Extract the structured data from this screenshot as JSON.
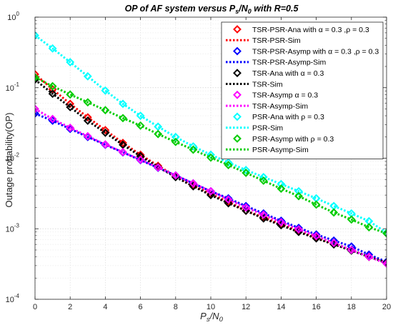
{
  "chart_data": {
    "type": "line",
    "title_parts": [
      "OP of AF system versus P",
      "s",
      "/N",
      "0",
      " with R=0.5"
    ],
    "xlabel_parts": [
      "P",
      "s",
      "/N",
      "0"
    ],
    "ylabel": "Outage probability(OP)",
    "xlim": [
      0,
      20
    ],
    "ylim": [
      0.0001,
      1
    ],
    "yscale": "log",
    "xticks": [
      "0",
      "2",
      "4",
      "6",
      "8",
      "10",
      "12",
      "14",
      "16",
      "18",
      "20"
    ],
    "yticks": [
      {
        "base": "10",
        "exp": "0"
      },
      {
        "base": "10",
        "exp": "-1"
      },
      {
        "base": "10",
        "exp": "-2"
      },
      {
        "base": "10",
        "exp": "-3"
      },
      {
        "base": "10",
        "exp": "-4"
      }
    ],
    "grid": true,
    "legend_position": "top-right",
    "x": [
      0,
      1,
      2,
      3,
      4,
      5,
      6,
      7,
      8,
      9,
      10,
      11,
      12,
      13,
      14,
      15,
      16,
      17,
      18,
      19,
      20
    ],
    "series": [
      {
        "name": "TSR-PSR-Ana with α = 0.3 ,ρ = 0.3",
        "color": "#ff0000",
        "style": "marker",
        "values": [
          0.155,
          0.095,
          0.059,
          0.038,
          0.025,
          0.0165,
          0.0112,
          0.0078,
          0.0056,
          0.0041,
          0.0031,
          0.0024,
          0.0018,
          0.00145,
          0.00115,
          0.00093,
          0.00075,
          0.00061,
          0.0005,
          0.0004,
          0.00033
        ]
      },
      {
        "name": "TSR-PSR-Sim",
        "color": "#ff0000",
        "style": "dotted",
        "values": [
          0.155,
          0.095,
          0.059,
          0.038,
          0.025,
          0.0165,
          0.0112,
          0.0078,
          0.0056,
          0.0041,
          0.0031,
          0.0024,
          0.0018,
          0.00145,
          0.00115,
          0.00093,
          0.00075,
          0.00061,
          0.0005,
          0.0004,
          0.00033
        ]
      },
      {
        "name": "TSR-PSR-Asymp with α = 0.3 ,ρ = 0.3",
        "color": "#0000ff",
        "style": "marker",
        "values": [
          0.043,
          0.034,
          0.026,
          0.02,
          0.0155,
          0.0121,
          0.0094,
          0.0073,
          0.0057,
          0.0044,
          0.0034,
          0.0027,
          0.0021,
          0.00165,
          0.0013,
          0.00103,
          0.00083,
          0.00068,
          0.00056,
          0.00043,
          0.00034
        ]
      },
      {
        "name": "TSR-PSR-Asymp-Sim",
        "color": "#0000ff",
        "style": "dotted",
        "values": [
          0.043,
          0.034,
          0.026,
          0.02,
          0.0155,
          0.0121,
          0.0094,
          0.0073,
          0.0057,
          0.0044,
          0.0034,
          0.0027,
          0.0021,
          0.00165,
          0.0013,
          0.00103,
          0.00083,
          0.00068,
          0.00056,
          0.00043,
          0.00034
        ]
      },
      {
        "name": "TSR-Ana with α = 0.3",
        "color": "#000000",
        "style": "marker",
        "values": [
          0.13,
          0.082,
          0.053,
          0.034,
          0.023,
          0.0155,
          0.0107,
          0.0075,
          0.0054,
          0.004,
          0.003,
          0.0023,
          0.0018,
          0.0014,
          0.00112,
          0.0009,
          0.00073,
          0.0006,
          0.00049,
          0.0004,
          0.00033
        ]
      },
      {
        "name": "TSR-Sim",
        "color": "#000000",
        "style": "dotted",
        "values": [
          0.13,
          0.082,
          0.053,
          0.034,
          0.023,
          0.0155,
          0.0107,
          0.0075,
          0.0054,
          0.004,
          0.003,
          0.0023,
          0.0018,
          0.0014,
          0.00112,
          0.0009,
          0.00073,
          0.0006,
          0.00049,
          0.0004,
          0.00033
        ]
      },
      {
        "name": "TSR-Asymp α = 0.3",
        "color": "#ff00ff",
        "style": "marker",
        "values": [
          0.05,
          0.036,
          0.027,
          0.0205,
          0.0157,
          0.0122,
          0.0095,
          0.0074,
          0.0057,
          0.0044,
          0.0034,
          0.0026,
          0.002,
          0.00158,
          0.00124,
          0.00098,
          0.00079,
          0.00063,
          0.0005,
          0.0004,
          0.00032
        ]
      },
      {
        "name": "TSR-Asymp-Sim",
        "color": "#ff00ff",
        "style": "dotted",
        "values": [
          0.05,
          0.036,
          0.027,
          0.0205,
          0.0157,
          0.0122,
          0.0095,
          0.0074,
          0.0057,
          0.0044,
          0.0034,
          0.0026,
          0.002,
          0.00158,
          0.00124,
          0.00098,
          0.00079,
          0.00063,
          0.0005,
          0.0004,
          0.00032
        ]
      },
      {
        "name": "PSR-Ana with ρ = 0.3",
        "color": "#00ffff",
        "style": "marker",
        "values": [
          0.55,
          0.36,
          0.23,
          0.145,
          0.091,
          0.059,
          0.04,
          0.028,
          0.02,
          0.0147,
          0.0112,
          0.0087,
          0.0068,
          0.0054,
          0.0043,
          0.0034,
          0.0027,
          0.0021,
          0.00165,
          0.00128,
          0.00088
        ]
      },
      {
        "name": "PSR-Sim",
        "color": "#00ffff",
        "style": "dotted",
        "values": [
          0.55,
          0.36,
          0.23,
          0.145,
          0.091,
          0.059,
          0.04,
          0.028,
          0.02,
          0.0147,
          0.0112,
          0.0087,
          0.0068,
          0.0054,
          0.0043,
          0.0034,
          0.0027,
          0.0021,
          0.00165,
          0.00128,
          0.00088
        ]
      },
      {
        "name": "PSR-Asymp with ρ = 0.3",
        "color": "#00cc00",
        "style": "marker",
        "values": [
          0.14,
          0.105,
          0.08,
          0.062,
          0.048,
          0.037,
          0.029,
          0.022,
          0.017,
          0.0132,
          0.0102,
          0.008,
          0.0062,
          0.0048,
          0.0037,
          0.0029,
          0.0022,
          0.0017,
          0.00135,
          0.00105,
          0.00086
        ]
      },
      {
        "name": "PSR-Asymp-Sim",
        "color": "#00cc00",
        "style": "dotted",
        "values": [
          0.14,
          0.105,
          0.08,
          0.062,
          0.048,
          0.037,
          0.029,
          0.022,
          0.017,
          0.0132,
          0.0102,
          0.008,
          0.0062,
          0.0048,
          0.0037,
          0.0029,
          0.0022,
          0.0017,
          0.00135,
          0.00105,
          0.00086
        ]
      }
    ]
  }
}
